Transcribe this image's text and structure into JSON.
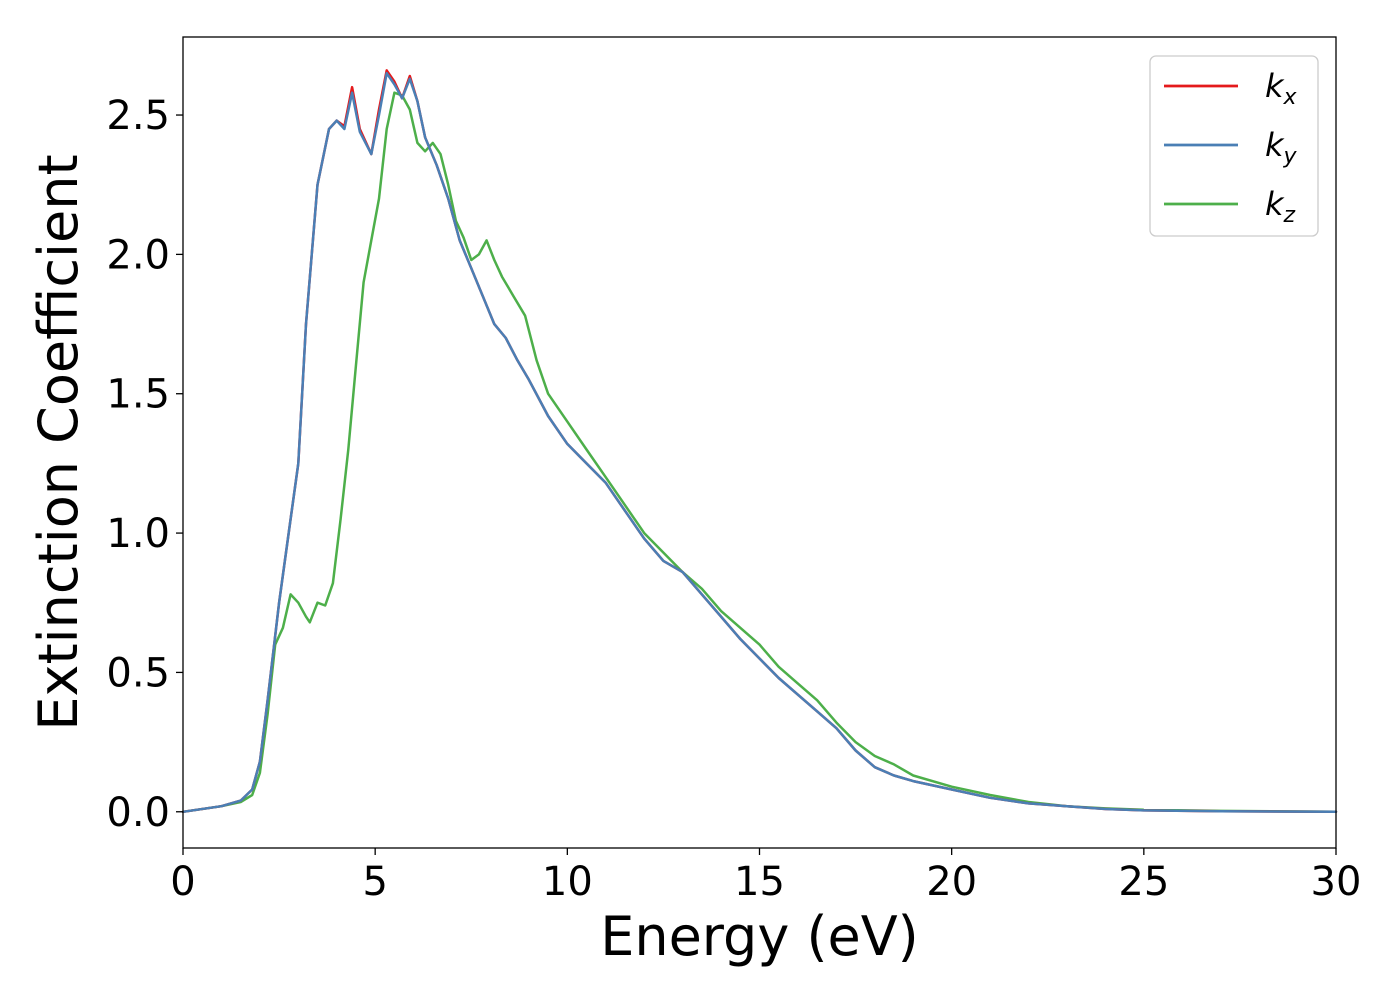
{
  "chart_data": {
    "type": "line",
    "xlabel": "Energy (eV)",
    "ylabel": "Extinction Coefficient",
    "xlim": [
      0,
      30
    ],
    "ylim": [
      -0.13,
      2.78
    ],
    "xticks": [
      0,
      5,
      10,
      15,
      20,
      25,
      30
    ],
    "xtick_labels": [
      "0",
      "5",
      "10",
      "15",
      "20",
      "25",
      "30"
    ],
    "yticks": [
      0.0,
      0.5,
      1.0,
      1.5,
      2.0,
      2.5
    ],
    "ytick_labels": [
      "0.0",
      "0.5",
      "1.0",
      "1.5",
      "2.0",
      "2.5"
    ],
    "grid": false,
    "legend_position": "top-right",
    "series": [
      {
        "name": "k",
        "subscript": "x",
        "color": "#e41a1c",
        "x": [
          0,
          1,
          1.5,
          1.8,
          2.0,
          2.2,
          2.5,
          2.8,
          3.0,
          3.2,
          3.5,
          3.8,
          4.0,
          4.2,
          4.4,
          4.6,
          4.9,
          5.1,
          5.3,
          5.5,
          5.7,
          5.9,
          6.1,
          6.3,
          6.6,
          6.9,
          7.2,
          7.5,
          7.8,
          8.1,
          8.4,
          8.7,
          9.0,
          9.5,
          10.0,
          10.5,
          11.0,
          11.5,
          12.0,
          12.5,
          13.0,
          13.5,
          14.0,
          14.5,
          15.0,
          15.5,
          16.0,
          16.5,
          17.0,
          17.5,
          18.0,
          18.5,
          19.0,
          20.0,
          21.0,
          22.0,
          23.0,
          24.0,
          25.0,
          27.0,
          30.0
        ],
        "y": [
          0,
          0.02,
          0.04,
          0.08,
          0.18,
          0.4,
          0.75,
          1.05,
          1.25,
          1.75,
          2.25,
          2.45,
          2.48,
          2.46,
          2.6,
          2.45,
          2.36,
          2.52,
          2.66,
          2.62,
          2.56,
          2.64,
          2.55,
          2.42,
          2.32,
          2.2,
          2.05,
          1.95,
          1.85,
          1.75,
          1.7,
          1.62,
          1.55,
          1.42,
          1.32,
          1.25,
          1.18,
          1.08,
          0.98,
          0.9,
          0.86,
          0.78,
          0.7,
          0.62,
          0.55,
          0.48,
          0.42,
          0.36,
          0.3,
          0.22,
          0.16,
          0.13,
          0.11,
          0.08,
          0.05,
          0.03,
          0.02,
          0.01,
          0.005,
          0.002,
          0
        ]
      },
      {
        "name": "k",
        "subscript": "y",
        "color": "#4a7fb5",
        "x": [
          0,
          1,
          1.5,
          1.8,
          2.0,
          2.2,
          2.5,
          2.8,
          3.0,
          3.2,
          3.5,
          3.8,
          4.0,
          4.2,
          4.4,
          4.6,
          4.9,
          5.1,
          5.3,
          5.5,
          5.7,
          5.9,
          6.1,
          6.3,
          6.6,
          6.9,
          7.2,
          7.5,
          7.8,
          8.1,
          8.4,
          8.7,
          9.0,
          9.5,
          10.0,
          10.5,
          11.0,
          11.5,
          12.0,
          12.5,
          13.0,
          13.5,
          14.0,
          14.5,
          15.0,
          15.5,
          16.0,
          16.5,
          17.0,
          17.5,
          18.0,
          18.5,
          19.0,
          20.0,
          21.0,
          22.0,
          23.0,
          24.0,
          25.0,
          27.0,
          30.0
        ],
        "y": [
          0,
          0.02,
          0.04,
          0.08,
          0.18,
          0.4,
          0.75,
          1.05,
          1.25,
          1.75,
          2.25,
          2.45,
          2.48,
          2.45,
          2.58,
          2.44,
          2.36,
          2.5,
          2.65,
          2.61,
          2.56,
          2.63,
          2.55,
          2.42,
          2.32,
          2.2,
          2.05,
          1.95,
          1.85,
          1.75,
          1.7,
          1.62,
          1.55,
          1.42,
          1.32,
          1.25,
          1.18,
          1.08,
          0.98,
          0.9,
          0.86,
          0.78,
          0.7,
          0.62,
          0.55,
          0.48,
          0.42,
          0.36,
          0.3,
          0.22,
          0.16,
          0.13,
          0.11,
          0.08,
          0.05,
          0.03,
          0.02,
          0.01,
          0.005,
          0.002,
          0
        ]
      },
      {
        "name": "k",
        "subscript": "z",
        "color": "#4daf4a",
        "x": [
          0,
          1,
          1.5,
          1.8,
          2.0,
          2.2,
          2.4,
          2.6,
          2.8,
          3.0,
          3.2,
          3.3,
          3.5,
          3.7,
          3.9,
          4.1,
          4.3,
          4.5,
          4.7,
          4.9,
          5.1,
          5.3,
          5.5,
          5.7,
          5.9,
          6.1,
          6.3,
          6.5,
          6.7,
          6.9,
          7.1,
          7.3,
          7.5,
          7.7,
          7.9,
          8.1,
          8.3,
          8.6,
          8.9,
          9.2,
          9.5,
          10.0,
          10.5,
          11.0,
          11.5,
          12.0,
          12.5,
          13.0,
          13.5,
          14.0,
          14.5,
          15.0,
          15.5,
          16.0,
          16.5,
          17.0,
          17.5,
          18.0,
          18.5,
          19.0,
          20.0,
          21.0,
          22.0,
          23.0,
          24.0,
          25.0,
          27.0,
          30.0
        ],
        "y": [
          0,
          0.02,
          0.035,
          0.06,
          0.14,
          0.35,
          0.6,
          0.66,
          0.78,
          0.75,
          0.7,
          0.68,
          0.75,
          0.74,
          0.82,
          1.05,
          1.3,
          1.6,
          1.9,
          2.05,
          2.2,
          2.45,
          2.58,
          2.57,
          2.52,
          2.4,
          2.37,
          2.4,
          2.36,
          2.25,
          2.12,
          2.06,
          1.98,
          2.0,
          2.05,
          1.98,
          1.92,
          1.85,
          1.78,
          1.62,
          1.5,
          1.4,
          1.3,
          1.2,
          1.1,
          1.0,
          0.93,
          0.86,
          0.8,
          0.72,
          0.66,
          0.6,
          0.52,
          0.46,
          0.4,
          0.32,
          0.25,
          0.2,
          0.17,
          0.13,
          0.09,
          0.06,
          0.035,
          0.02,
          0.012,
          0.007,
          0.003,
          0
        ]
      }
    ]
  }
}
